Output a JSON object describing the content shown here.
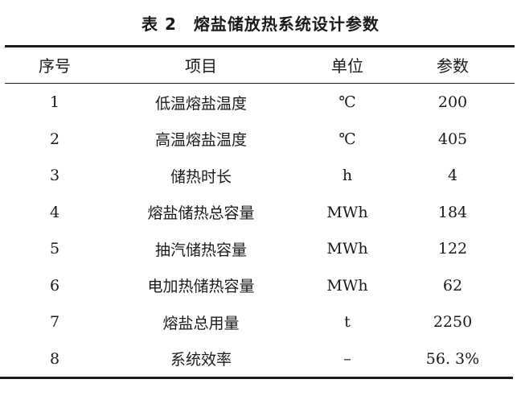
{
  "title": "表 2　熔盐储放热系统设计参数",
  "headers": [
    "序号",
    "项目",
    "单位",
    "参数"
  ],
  "rows": [
    [
      "1",
      "低温熔盐温度",
      "℃",
      "200"
    ],
    [
      "2",
      "高温熔盐温度",
      "℃",
      "405"
    ],
    [
      "3",
      "储热时长",
      "h",
      "4"
    ],
    [
      "4",
      "熔盐储热总容量",
      "MWh",
      "184"
    ],
    [
      "5",
      "抽汽储热容量",
      "MWh",
      "122"
    ],
    [
      "6",
      "电加热储热容量",
      "MWh",
      "62"
    ],
    [
      "7",
      "熔盐总用量",
      "t",
      "2250"
    ],
    [
      "8",
      "系统效率",
      "–",
      "56. 3%"
    ]
  ]
}
